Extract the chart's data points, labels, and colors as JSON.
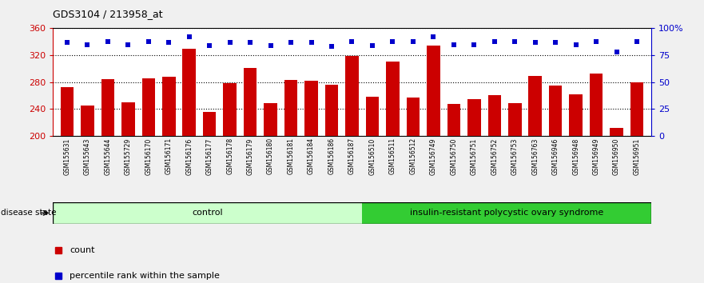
{
  "title": "GDS3104 / 213958_at",
  "samples": [
    "GSM155631",
    "GSM155643",
    "GSM155644",
    "GSM155729",
    "GSM156170",
    "GSM156171",
    "GSM156176",
    "GSM156177",
    "GSM156178",
    "GSM156179",
    "GSM156180",
    "GSM156181",
    "GSM156184",
    "GSM156186",
    "GSM156187",
    "GSM156510",
    "GSM156511",
    "GSM156512",
    "GSM156749",
    "GSM156750",
    "GSM156751",
    "GSM156752",
    "GSM156753",
    "GSM156763",
    "GSM156946",
    "GSM156948",
    "GSM156949",
    "GSM156950",
    "GSM156951"
  ],
  "bar_values": [
    272,
    245,
    284,
    250,
    285,
    288,
    330,
    236,
    278,
    301,
    249,
    283,
    282,
    276,
    319,
    258,
    310,
    257,
    334,
    248,
    255,
    260,
    249,
    289,
    275,
    262,
    293,
    212,
    280
  ],
  "percentile_values": [
    87,
    85,
    88,
    85,
    88,
    87,
    92,
    84,
    87,
    87,
    84,
    87,
    87,
    83,
    88,
    84,
    88,
    88,
    92,
    85,
    85,
    88,
    88,
    87,
    87,
    85,
    88,
    78,
    88
  ],
  "bar_color": "#cc0000",
  "dot_color": "#0000cc",
  "ylim_left": [
    200,
    360
  ],
  "ylim_right": [
    0,
    100
  ],
  "yticks_left": [
    200,
    240,
    280,
    320,
    360
  ],
  "yticks_right": [
    0,
    25,
    50,
    75,
    100
  ],
  "ytick_right_labels": [
    "0",
    "25",
    "50",
    "75",
    "100%"
  ],
  "control_count": 15,
  "disease_count": 14,
  "control_label": "control",
  "disease_label": "insulin-resistant polycystic ovary syndrome",
  "disease_state_label": "disease state",
  "legend_count_label": "count",
  "legend_percentile_label": "percentile rank within the sample",
  "bg_color": "#f0f0f0",
  "plot_bg": "#ffffff",
  "control_bg": "#ccffcc",
  "disease_bg": "#33cc33",
  "label_area_bg": "#cccccc"
}
